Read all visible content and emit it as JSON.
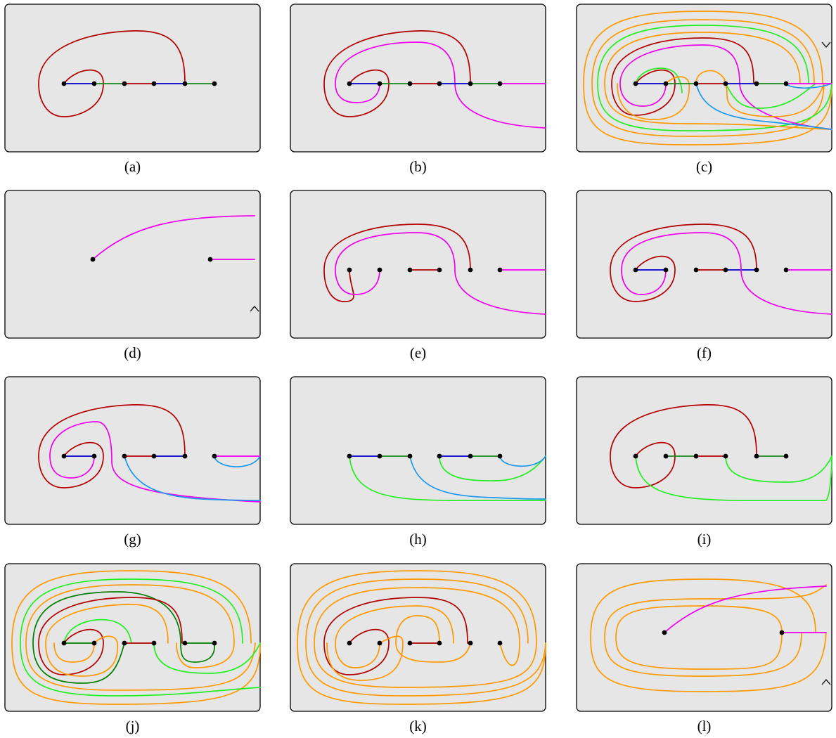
{
  "colors": {
    "background": "#e6e6e6",
    "red": "#b30000",
    "blue": "#0000cc",
    "green": "#1a8a1a",
    "magenta": "#ee00ee",
    "orange": "#ff9900",
    "lime": "#22ee22",
    "sky": "#1a99ee",
    "darkgreen": "#008000"
  },
  "panels": [
    {
      "id": "a",
      "label": "(a)"
    },
    {
      "id": "b",
      "label": "(b)"
    },
    {
      "id": "c",
      "label": "(c)"
    },
    {
      "id": "d",
      "label": "(d)"
    },
    {
      "id": "e",
      "label": "(e)"
    },
    {
      "id": "f",
      "label": "(f)"
    },
    {
      "id": "g",
      "label": "(g)"
    },
    {
      "id": "h",
      "label": "(h)"
    },
    {
      "id": "i",
      "label": "(i)"
    },
    {
      "id": "j",
      "label": "(j)"
    },
    {
      "id": "k",
      "label": "(k)"
    },
    {
      "id": "l",
      "label": "(l)"
    }
  ]
}
